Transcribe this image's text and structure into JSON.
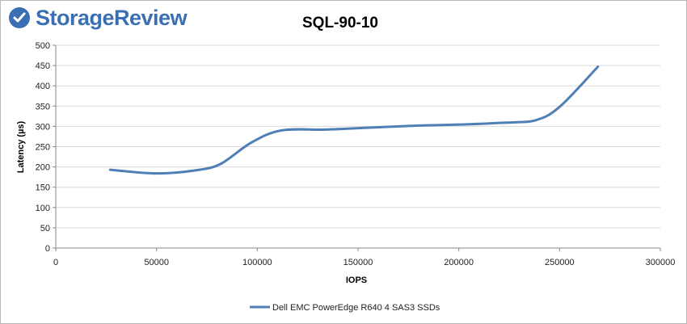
{
  "brand": {
    "name": "StorageReview",
    "color": "#3b6fb3"
  },
  "chart_data": {
    "type": "line",
    "title": "SQL-90-10",
    "xlabel": "IOPS",
    "ylabel": "Latency (µs)",
    "xlim": [
      0,
      300000
    ],
    "ylim": [
      0,
      500
    ],
    "xticks": [
      0,
      50000,
      100000,
      150000,
      200000,
      250000,
      300000
    ],
    "yticks": [
      0,
      50,
      100,
      150,
      200,
      250,
      300,
      350,
      400,
      450,
      500
    ],
    "grid": true,
    "legend": "bottom",
    "series": [
      {
        "name": "Dell EMC PowerEdge R640 4 SAS3 SSDs",
        "color": "#4f7fb5",
        "points": [
          [
            27000,
            193
          ],
          [
            50000,
            184
          ],
          [
            70000,
            192
          ],
          [
            82000,
            208
          ],
          [
            97000,
            260
          ],
          [
            112000,
            290
          ],
          [
            134000,
            292
          ],
          [
            157000,
            297
          ],
          [
            180000,
            302
          ],
          [
            204000,
            305
          ],
          [
            222000,
            309
          ],
          [
            238000,
            315
          ],
          [
            250000,
            348
          ],
          [
            269000,
            447
          ]
        ]
      }
    ]
  }
}
